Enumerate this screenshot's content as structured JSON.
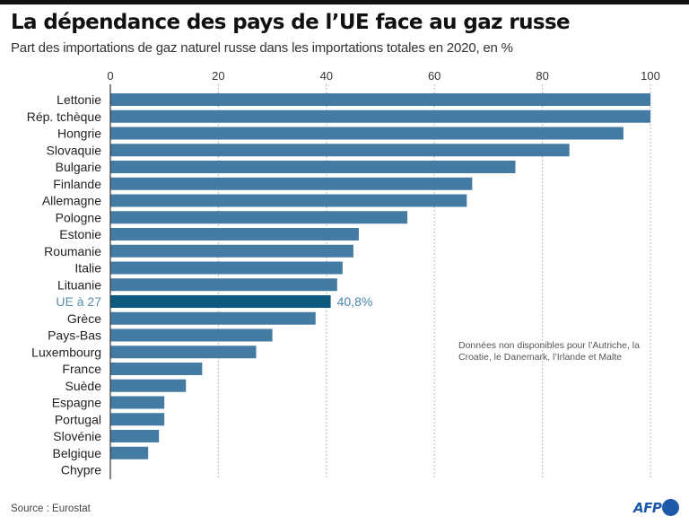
{
  "chart_data": {
    "type": "bar",
    "orientation": "horizontal",
    "title": "La dépendance des pays de l’UE face au gaz russe",
    "subtitle": "Part des importations de gaz naturel russe dans les importations totales en 2020, en %",
    "xlabel": "",
    "ylabel": "",
    "xlim": [
      0,
      100
    ],
    "xticks": [
      0,
      20,
      40,
      60,
      80,
      100
    ],
    "xtick_labels": [
      "0",
      "20",
      "40",
      "60",
      "80",
      "100"
    ],
    "grid": "vertical dotted",
    "categories": [
      "Lettonie",
      "Rép. tchèque",
      "Hongrie",
      "Slovaquie",
      "Bulgarie",
      "Finlande",
      "Allemagne",
      "Pologne",
      "Estonie",
      "Roumanie",
      "Italie",
      "Lituanie",
      "UE à 27",
      "Grèce",
      "Pays-Bas",
      "Luxembourg",
      "France",
      "Suède",
      "Espagne",
      "Portugal",
      "Slovénie",
      "Belgique",
      "Chypre"
    ],
    "values": [
      100,
      100,
      95,
      85,
      75,
      67,
      66,
      55,
      46,
      45,
      43,
      42,
      40.8,
      38,
      30,
      27,
      17,
      14,
      10,
      10,
      9,
      7,
      0
    ],
    "highlight": {
      "category": "UE à 27",
      "value_label": "40,8%"
    },
    "colors": {
      "bar": "#437ba3",
      "highlight_bar": "#0c5a80",
      "highlight_label": "#5a8fb0",
      "axis": "#333333",
      "grid": "#bbbbbb"
    },
    "annotation": "Données non disponibles pour l’Autriche, la Croatie, le Danemark, l’Irlande et Malte"
  },
  "footer": {
    "source": "Source : Eurostat",
    "logo_text": "AFP"
  }
}
